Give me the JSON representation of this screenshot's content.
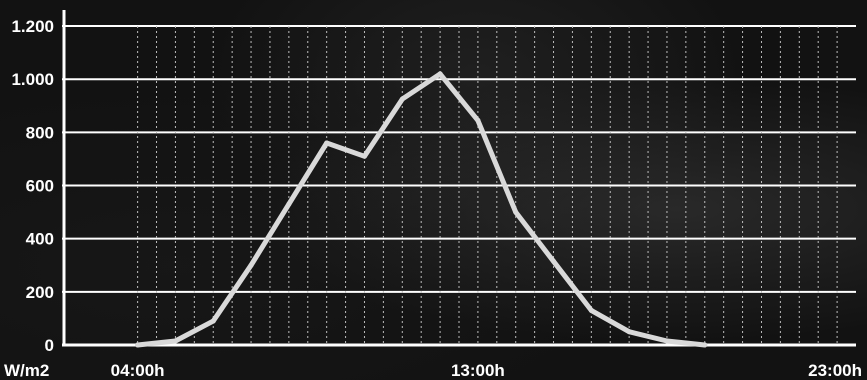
{
  "chart_data": {
    "type": "line",
    "title": "",
    "xlabel": "",
    "ylabel": "W/m2",
    "ylim": [
      0,
      1250
    ],
    "grid": true,
    "y_ticks": [
      0,
      200,
      400,
      600,
      800,
      1000,
      1200
    ],
    "y_tick_labels": [
      "0",
      "200",
      "400",
      "600",
      "800",
      "1.000",
      "1.200"
    ],
    "x_tick_labels": [
      {
        "hour": 4,
        "label": "04:00h"
      },
      {
        "hour": 13,
        "label": "13:00h"
      },
      {
        "hour": 23,
        "label": "23:00h"
      }
    ],
    "xlim": [
      2,
      23
    ],
    "x_hours": [
      4,
      5,
      6,
      7,
      8,
      9,
      10,
      11,
      12,
      13,
      14,
      15,
      16,
      17,
      18,
      19
    ],
    "values": [
      0,
      15,
      90,
      300,
      530,
      760,
      710,
      925,
      1020,
      845,
      500,
      315,
      130,
      50,
      15,
      0
    ],
    "line_color": "#d9d9d9",
    "grid_color": "#ffffff"
  }
}
